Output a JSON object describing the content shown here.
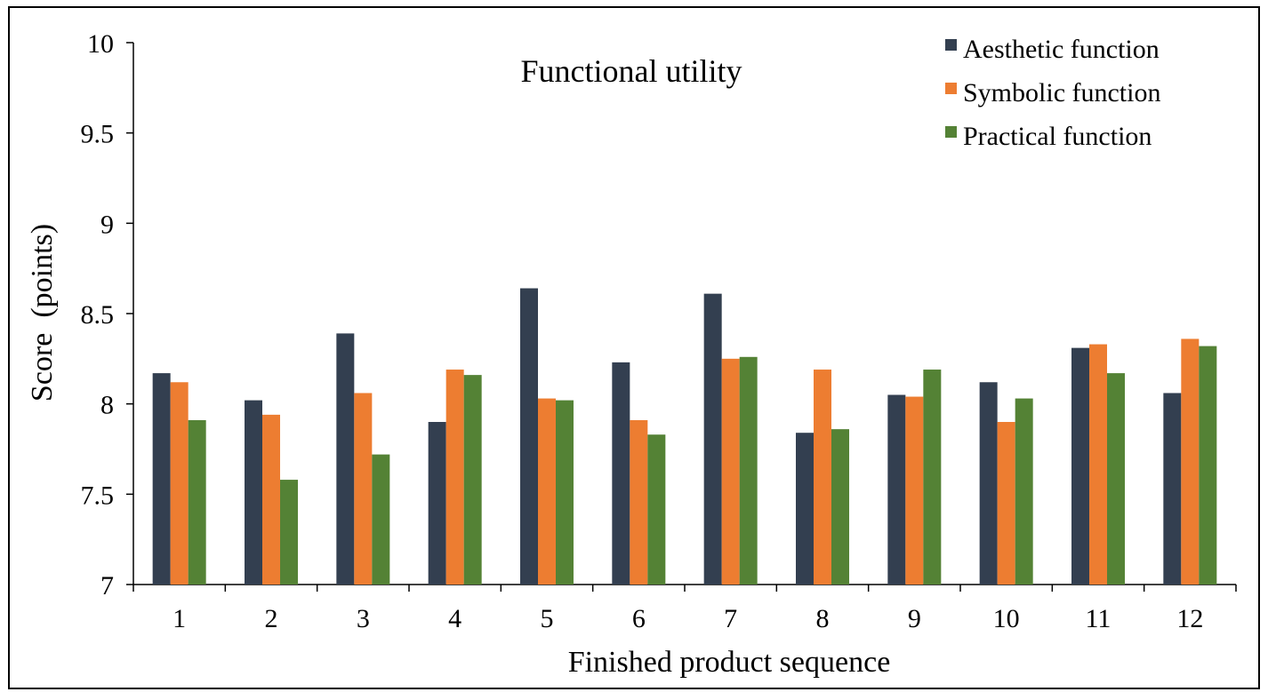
{
  "chart_data": {
    "type": "bar",
    "title": "Functional utility",
    "xlabel": "Finished product sequence",
    "ylabel": "Score  (points)",
    "categories": [
      "1",
      "2",
      "3",
      "4",
      "5",
      "6",
      "7",
      "8",
      "9",
      "10",
      "11",
      "12"
    ],
    "ylim": [
      7,
      10
    ],
    "yticks": [
      "7",
      "7.5",
      "8",
      "8.5",
      "9",
      "9.5",
      "10"
    ],
    "ytick_values": [
      7,
      7.5,
      8,
      8.5,
      9,
      9.5,
      10
    ],
    "grid": false,
    "legend_position": "top-right",
    "series": [
      {
        "name": "Aesthetic function",
        "color": "#333f50",
        "values": [
          8.17,
          8.02,
          8.39,
          7.9,
          8.64,
          8.23,
          8.61,
          7.84,
          8.05,
          8.12,
          8.31,
          8.06
        ]
      },
      {
        "name": "Symbolic function",
        "color": "#ed7d31",
        "values": [
          8.12,
          7.94,
          8.06,
          8.19,
          8.03,
          7.91,
          8.25,
          8.19,
          8.04,
          7.9,
          8.33,
          8.36
        ]
      },
      {
        "name": "Practical function",
        "color": "#548235",
        "values": [
          7.91,
          7.58,
          7.72,
          8.16,
          8.02,
          7.83,
          8.26,
          7.86,
          8.19,
          8.03,
          8.17,
          8.32
        ]
      }
    ]
  }
}
